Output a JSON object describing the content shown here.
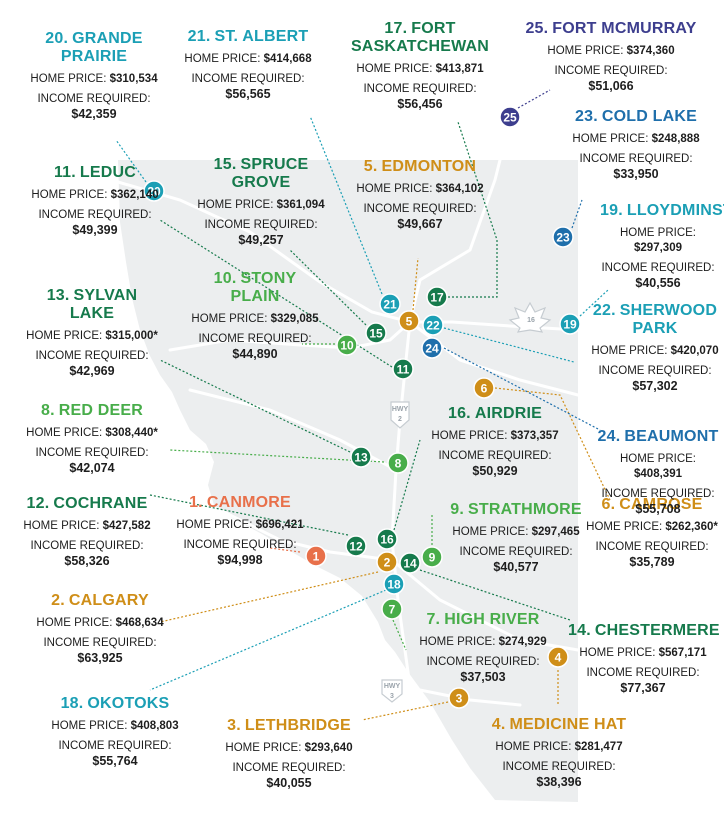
{
  "colors": {
    "teal": "#1b9fb5",
    "dark_green": "#167a4c",
    "light_green": "#48ad4a",
    "orange_red": "#e8704a",
    "gold": "#cf8e18",
    "blue": "#1f6fab",
    "purple": "#3d3e8e",
    "province_fill": "#eceeef",
    "road_color": "#ffffff"
  },
  "highways": [
    {
      "label": "HWY",
      "number": "2"
    },
    {
      "label": "HWY",
      "number": "3"
    },
    {
      "label": "",
      "number": "16"
    }
  ],
  "cities": [
    {
      "rank": "1.",
      "name_lines": [
        "CANMORE"
      ],
      "home_price_label": "HOME PRICE:",
      "home_price": "$696,421",
      "income_label": "INCOME REQUIRED:",
      "income": "$94,998",
      "color": "#e8704a",
      "pin": "1"
    },
    {
      "rank": "2.",
      "name_lines": [
        "CALGARY"
      ],
      "home_price_label": "HOME PRICE:",
      "home_price": "$468,634",
      "income_label": "INCOME REQUIRED:",
      "income": "$63,925",
      "color": "#cf8e18",
      "pin": "2"
    },
    {
      "rank": "3.",
      "name_lines": [
        "LETHBRIDGE"
      ],
      "home_price_label": "HOME PRICE:",
      "home_price": "$293,640",
      "income_label": "INCOME REQUIRED:",
      "income": "$40,055",
      "color": "#cf8e18",
      "pin": "3"
    },
    {
      "rank": "4.",
      "name_lines": [
        "MEDICINE HAT"
      ],
      "home_price_label": "HOME PRICE:",
      "home_price": "$281,477",
      "income_label": "INCOME REQUIRED:",
      "income": "$38,396",
      "color": "#cf8e18",
      "pin": "4"
    },
    {
      "rank": "5.",
      "name_lines": [
        "EDMONTON"
      ],
      "home_price_label": "HOME PRICE:",
      "home_price": "$364,102",
      "income_label": "INCOME REQUIRED:",
      "income": "$49,667",
      "color": "#cf8e18",
      "pin": "5"
    },
    {
      "rank": "6.",
      "name_lines": [
        "CAMROSE"
      ],
      "home_price_label": "HOME PRICE:",
      "home_price": "$262,360*",
      "income_label": "INCOME REQUIRED:",
      "income": "$35,789",
      "color": "#cf8e18",
      "pin": "6"
    },
    {
      "rank": "7.",
      "name_lines": [
        "HIGH RIVER"
      ],
      "home_price_label": "HOME PRICE:",
      "home_price": "$274,929",
      "income_label": "INCOME REQUIRED:",
      "income": "$37,503",
      "color": "#48ad4a",
      "pin": "7"
    },
    {
      "rank": "8.",
      "name_lines": [
        "RED DEER"
      ],
      "home_price_label": "HOME PRICE:",
      "home_price": "$308,440*",
      "income_label": "INCOME REQUIRED:",
      "income": "$42,074",
      "color": "#48ad4a",
      "pin": "8"
    },
    {
      "rank": "9.",
      "name_lines": [
        "STRATHMORE"
      ],
      "home_price_label": "HOME PRICE:",
      "home_price": "$297,465",
      "income_label": "INCOME REQUIRED:",
      "income": "$40,577",
      "color": "#48ad4a",
      "pin": "9"
    },
    {
      "rank": "10.",
      "name_lines": [
        "STONY",
        "PLAIN"
      ],
      "home_price_label": "HOME PRICE:",
      "home_price": "$329,085",
      "income_label": "INCOME REQUIRED:",
      "income": "$44,890",
      "color": "#48ad4a",
      "pin": "10"
    },
    {
      "rank": "11.",
      "name_lines": [
        "LEDUC"
      ],
      "home_price_label": "HOME PRICE:",
      "home_price": "$362,140",
      "income_label": "INCOME REQUIRED:",
      "income": "$49,399",
      "color": "#167a4c",
      "pin": "11"
    },
    {
      "rank": "12.",
      "name_lines": [
        "COCHRANE"
      ],
      "home_price_label": "HOME PRICE:",
      "home_price": "$427,582",
      "income_label": "INCOME REQUIRED:",
      "income": "$58,326",
      "color": "#167a4c",
      "pin": "12"
    },
    {
      "rank": "13.",
      "name_lines": [
        "SYLVAN",
        "LAKE"
      ],
      "home_price_label": "HOME PRICE:",
      "home_price": "$315,000*",
      "income_label": "INCOME REQUIRED:",
      "income": "$42,969",
      "color": "#167a4c",
      "pin": "13"
    },
    {
      "rank": "14.",
      "name_lines": [
        "CHESTERMERE"
      ],
      "home_price_label": "HOME PRICE:",
      "home_price": "$567,171",
      "income_label": "INCOME REQUIRED:",
      "income": "$77,367",
      "color": "#167a4c",
      "pin": "14"
    },
    {
      "rank": "15.",
      "name_lines": [
        "SPRUCE",
        "GROVE"
      ],
      "home_price_label": "HOME PRICE:",
      "home_price": "$361,094",
      "income_label": "INCOME REQUIRED:",
      "income": "$49,257",
      "color": "#167a4c",
      "pin": "15"
    },
    {
      "rank": "16.",
      "name_lines": [
        "AIRDRIE"
      ],
      "home_price_label": "HOME PRICE:",
      "home_price": "$373,357",
      "income_label": "INCOME REQUIRED:",
      "income": "$50,929",
      "color": "#167a4c",
      "pin": "16"
    },
    {
      "rank": "17.",
      "name_lines": [
        "FORT",
        "SASKATCHEWAN"
      ],
      "home_price_label": "HOME PRICE:",
      "home_price": "$413,871",
      "income_label": "INCOME REQUIRED:",
      "income": "$56,456",
      "color": "#167a4c",
      "pin": "17"
    },
    {
      "rank": "18.",
      "name_lines": [
        "OKOTOKS"
      ],
      "home_price_label": "HOME PRICE:",
      "home_price": "$408,803",
      "income_label": "INCOME REQUIRED:",
      "income": "$55,764",
      "color": "#1b9fb5",
      "pin": "18"
    },
    {
      "rank": "19.",
      "name_lines": [
        "LLOYDMINSTER"
      ],
      "home_price_label": "HOME PRICE:",
      "home_price": "$297,309",
      "income_label": "INCOME REQUIRED:",
      "income": "$40,556",
      "color": "#1b9fb5",
      "pin": "19"
    },
    {
      "rank": "20.",
      "name_lines": [
        "GRANDE",
        "PRAIRIE"
      ],
      "home_price_label": "HOME PRICE:",
      "home_price": "$310,534",
      "income_label": "INCOME REQUIRED:",
      "income": "$42,359",
      "color": "#1b9fb5",
      "pin": "20"
    },
    {
      "rank": "21.",
      "name_lines": [
        "ST. ALBERT"
      ],
      "home_price_label": "HOME PRICE:",
      "home_price": "$414,668",
      "income_label": "INCOME REQUIRED:",
      "income": "$56,565",
      "color": "#1b9fb5",
      "pin": "21"
    },
    {
      "rank": "22.",
      "name_lines": [
        "SHERWOOD",
        "PARK"
      ],
      "home_price_label": "HOME PRICE:",
      "home_price": "$420,070",
      "income_label": "INCOME REQUIRED:",
      "income": "$57,302",
      "color": "#1b9fb5",
      "pin": "22"
    },
    {
      "rank": "23.",
      "name_lines": [
        "COLD LAKE"
      ],
      "home_price_label": "HOME PRICE:",
      "home_price": "$248,888",
      "income_label": "INCOME REQUIRED:",
      "income": "$33,950",
      "color": "#1f6fab",
      "pin": "23"
    },
    {
      "rank": "24.",
      "name_lines": [
        "BEAUMONT"
      ],
      "home_price_label": "HOME PRICE:",
      "home_price": "$408,391",
      "income_label": "INCOME REQUIRED:",
      "income": "$55,708",
      "color": "#1f6fab",
      "pin": "24"
    },
    {
      "rank": "25.",
      "name_lines": [
        "FORT MCMURRAY"
      ],
      "home_price_label": "HOME PRICE:",
      "home_price": "$374,360",
      "income_label": "INCOME REQUIRED:",
      "income": "$51,066",
      "color": "#3d3e8e",
      "pin": "25"
    }
  ]
}
